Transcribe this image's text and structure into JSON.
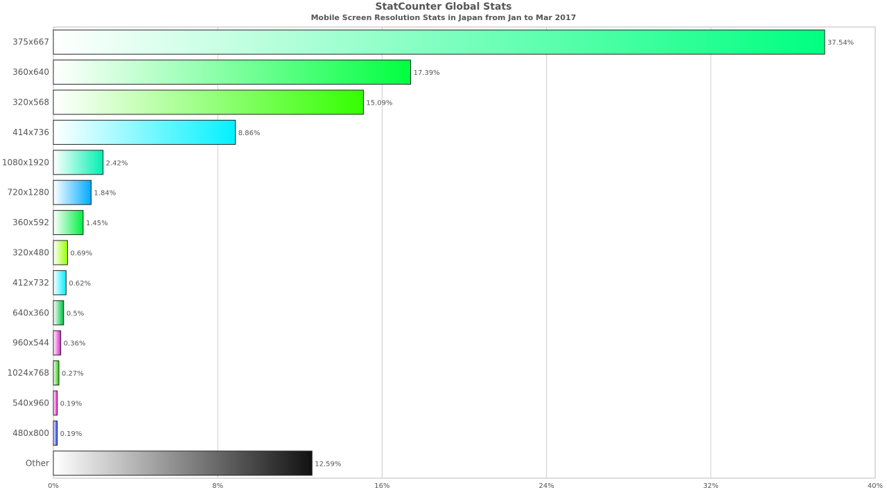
{
  "chart_data": {
    "type": "bar",
    "orientation": "horizontal",
    "title": "StatCounter Global Stats",
    "subtitle": "Mobile Screen Resolution Stats in Japan from Jan to Mar 2017",
    "categories": [
      "375x667",
      "360x640",
      "320x568",
      "414x736",
      "1080x1920",
      "720x1280",
      "360x592",
      "320x480",
      "412x732",
      "640x360",
      "960x544",
      "1024x768",
      "540x960",
      "480x800",
      "Other"
    ],
    "values": [
      37.54,
      17.39,
      15.09,
      8.86,
      2.42,
      1.84,
      1.45,
      0.69,
      0.62,
      0.5,
      0.36,
      0.27,
      0.19,
      0.19,
      12.59
    ],
    "value_labels": [
      "37.54%",
      "17.39%",
      "15.09%",
      "8.86%",
      "2.42%",
      "1.84%",
      "1.45%",
      "0.69%",
      "0.62%",
      "0.5%",
      "0.36%",
      "0.27%",
      "0.19%",
      "0.19%",
      "12.59%"
    ],
    "colors": [
      "#00ff80",
      "#00ff40",
      "#33ff00",
      "#00f2ff",
      "#00f0b0",
      "#00aaff",
      "#00ee44",
      "#99ff00",
      "#00eeff",
      "#00c040",
      "#dd22cc",
      "#22cc00",
      "#ff22dd",
      "#2244ff",
      "#111111"
    ],
    "xlim": [
      0,
      40
    ],
    "x_ticks": [
      0,
      8,
      16,
      24,
      32,
      40
    ],
    "x_tick_labels": [
      "0%",
      "8%",
      "16%",
      "24%",
      "32%",
      "40%"
    ],
    "xlabel": "",
    "ylabel": "",
    "grid": "vertical",
    "legend": "none"
  }
}
